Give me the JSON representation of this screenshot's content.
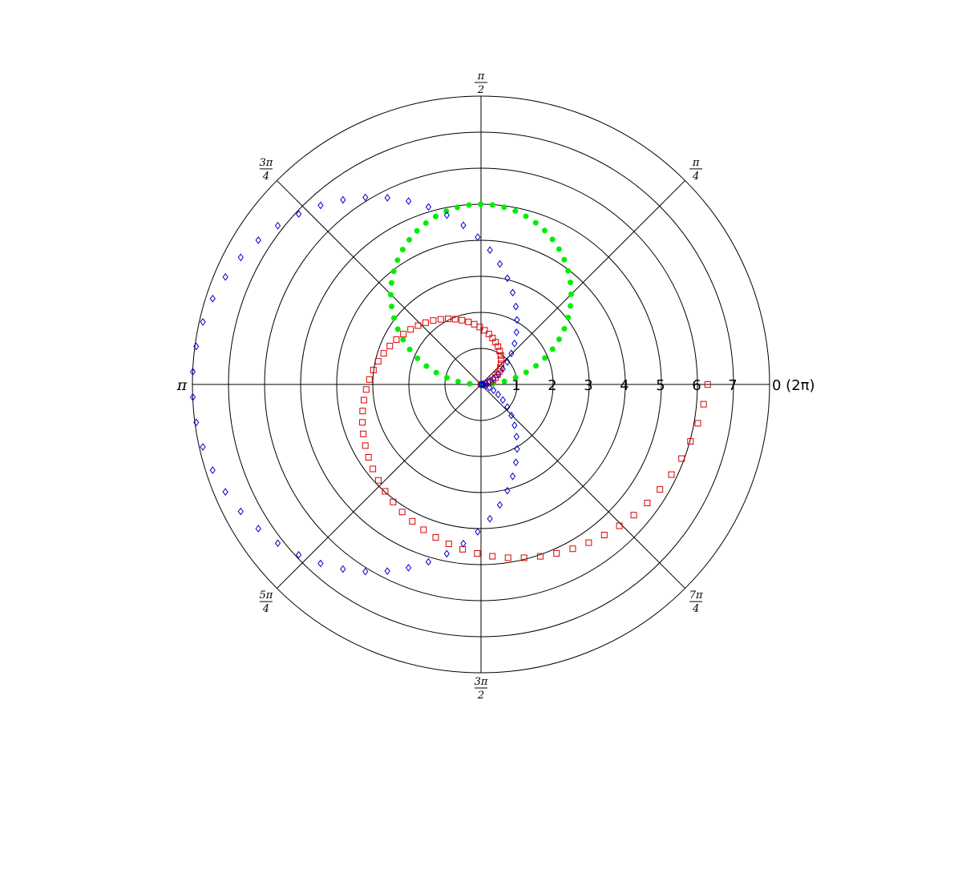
{
  "chart_data": {
    "type": "scatter",
    "projection": "polar",
    "theta_range": [
      0,
      6.283185307179586
    ],
    "r_range": [
      0,
      8
    ],
    "grid": true,
    "radial_ticks": [
      "1",
      "2",
      "3",
      "4",
      "5",
      "6",
      "7"
    ],
    "angle_ticks": [
      {
        "kind": "text",
        "text": "0 (2π)"
      },
      {
        "kind": "frac",
        "num": "π",
        "den": "4"
      },
      {
        "kind": "frac",
        "num": "π",
        "den": "2"
      },
      {
        "kind": "frac",
        "num": "3π",
        "den": "4"
      },
      {
        "kind": "text",
        "text": "π"
      },
      {
        "kind": "frac",
        "num": "5π",
        "den": "4"
      },
      {
        "kind": "frac",
        "num": "3π",
        "den": "2"
      },
      {
        "kind": "frac",
        "num": "7π",
        "den": "4"
      }
    ],
    "series": [
      {
        "marker": "circle-filled",
        "color": "#00ee00",
        "relation": "r = 5 sin(theta)",
        "theta_start": 0,
        "theta_end": 3.0788,
        "points": 48
      },
      {
        "marker": "square-open",
        "color": "#dd0000",
        "relation": "r = theta",
        "theta_start": 0,
        "theta_end": 6.283,
        "points": 72
      },
      {
        "marker": "diamond-open",
        "color": "#0000cc",
        "relation": "r = 8 sin^2(theta / 2)",
        "theta_start": 0,
        "theta_end": 6.283,
        "points": 72
      }
    ]
  }
}
